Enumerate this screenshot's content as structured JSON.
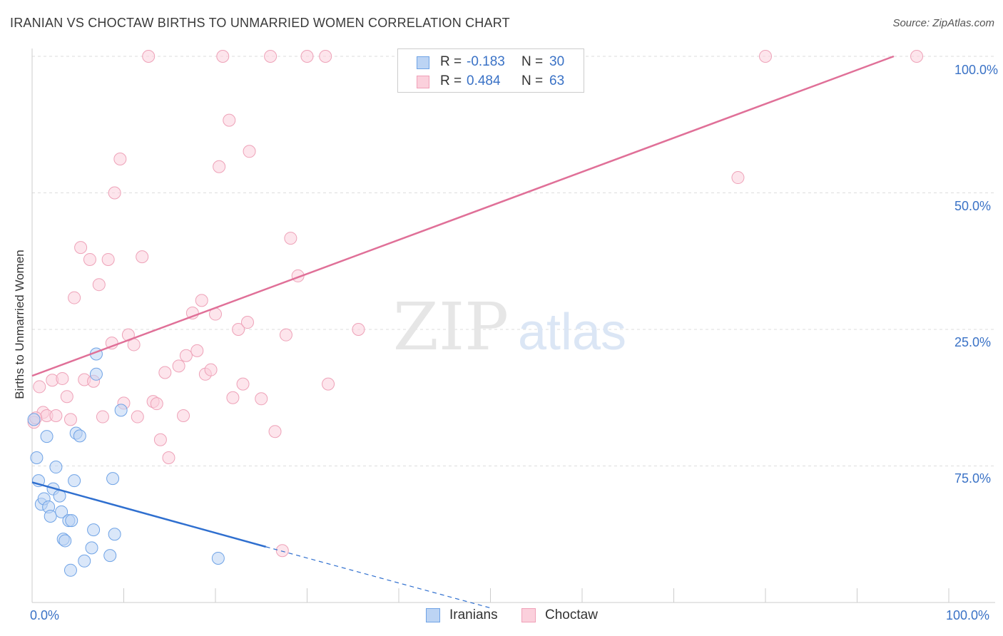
{
  "header": {
    "title": "IRANIAN VS CHOCTAW BIRTHS TO UNMARRIED WOMEN CORRELATION CHART",
    "source": "Source: ZipAtlas.com"
  },
  "watermark": {
    "zip": "ZIP",
    "atlas": "atlas"
  },
  "legend": {
    "iranians": {
      "r_label": "R =",
      "r_value": "-0.183",
      "n_label": "N =",
      "n_value": "30"
    },
    "choctaw": {
      "r_label": "R =",
      "r_value": "0.484",
      "n_label": "N =",
      "n_value": "63"
    }
  },
  "chart_data": {
    "type": "scatter",
    "title": "IRANIAN VS CHOCTAW BIRTHS TO UNMARRIED WOMEN CORRELATION CHART",
    "xlabel": "",
    "ylabel": "Births to Unmarried Women",
    "xlim": [
      0,
      100
    ],
    "ylim": [
      0,
      100
    ],
    "x_tick_labels": [
      "0.0%",
      "100.0%"
    ],
    "y_tick_labels": [
      "25.0%",
      "50.0%",
      "75.0%",
      "100.0%"
    ],
    "grid": true,
    "legend_position": "top-center",
    "colors": {
      "iranians": "#6fa3e6",
      "choctaw": "#f0a0b8",
      "iranians_line": "#2f6fcf",
      "choctaw_line": "#e07098"
    },
    "series": [
      {
        "name": "Iranians",
        "r": -0.183,
        "n": 30,
        "trend": {
          "x0": 0,
          "y0": 22.0,
          "x1": 25.5,
          "y1": 10.2,
          "dashed_to_x": 50,
          "dashed_to_y": -1.0
        },
        "points": [
          [
            0.2,
            33.5
          ],
          [
            0.5,
            26.5
          ],
          [
            0.7,
            22.3
          ],
          [
            1.0,
            18.0
          ],
          [
            1.3,
            19.0
          ],
          [
            1.6,
            30.4
          ],
          [
            1.8,
            17.5
          ],
          [
            2.0,
            15.8
          ],
          [
            2.3,
            20.8
          ],
          [
            2.6,
            24.8
          ],
          [
            3.0,
            19.5
          ],
          [
            3.2,
            16.6
          ],
          [
            3.4,
            11.6
          ],
          [
            3.6,
            11.3
          ],
          [
            4.0,
            15.0
          ],
          [
            4.3,
            15.0
          ],
          [
            4.2,
            5.9
          ],
          [
            4.6,
            22.3
          ],
          [
            4.8,
            31.0
          ],
          [
            5.2,
            30.5
          ],
          [
            5.7,
            7.6
          ],
          [
            6.5,
            10.0
          ],
          [
            6.7,
            13.3
          ],
          [
            7.0,
            45.5
          ],
          [
            7.0,
            41.8
          ],
          [
            8.5,
            8.6
          ],
          [
            8.8,
            22.7
          ],
          [
            9.0,
            12.5
          ],
          [
            9.7,
            35.2
          ],
          [
            20.3,
            8.1
          ]
        ]
      },
      {
        "name": "Choctaw",
        "r": 0.484,
        "n": 63,
        "trend": {
          "x0": 0,
          "y0": 41.5,
          "x1": 94,
          "y1": 100
        },
        "points": [
          [
            0.2,
            33.0
          ],
          [
            0.8,
            39.5
          ],
          [
            1.2,
            34.8
          ],
          [
            1.6,
            34.2
          ],
          [
            2.2,
            40.7
          ],
          [
            2.6,
            34.2
          ],
          [
            3.3,
            41.0
          ],
          [
            3.8,
            37.7
          ],
          [
            4.2,
            33.5
          ],
          [
            4.6,
            55.8
          ],
          [
            5.3,
            65.0
          ],
          [
            5.7,
            40.8
          ],
          [
            6.3,
            62.8
          ],
          [
            6.7,
            40.5
          ],
          [
            7.3,
            58.2
          ],
          [
            7.7,
            34.0
          ],
          [
            8.3,
            62.8
          ],
          [
            8.7,
            47.5
          ],
          [
            9.0,
            75.0
          ],
          [
            9.6,
            81.2
          ],
          [
            10.0,
            36.5
          ],
          [
            10.5,
            49.0
          ],
          [
            11.1,
            47.2
          ],
          [
            11.5,
            34.0
          ],
          [
            12.0,
            63.3
          ],
          [
            12.7,
            100.0
          ],
          [
            13.2,
            36.8
          ],
          [
            13.6,
            36.4
          ],
          [
            14.0,
            29.8
          ],
          [
            14.5,
            42.1
          ],
          [
            14.9,
            26.5
          ],
          [
            16.0,
            43.3
          ],
          [
            16.5,
            34.2
          ],
          [
            16.8,
            45.2
          ],
          [
            17.5,
            53.0
          ],
          [
            18.0,
            46.1
          ],
          [
            18.5,
            55.3
          ],
          [
            18.9,
            41.8
          ],
          [
            19.5,
            42.6
          ],
          [
            20.0,
            52.8
          ],
          [
            20.4,
            79.8
          ],
          [
            20.8,
            100.0
          ],
          [
            21.5,
            88.3
          ],
          [
            21.9,
            37.5
          ],
          [
            22.5,
            50.0
          ],
          [
            23.0,
            40.0
          ],
          [
            23.5,
            51.3
          ],
          [
            23.7,
            82.6
          ],
          [
            25.0,
            37.3
          ],
          [
            26.0,
            100.0
          ],
          [
            26.5,
            31.3
          ],
          [
            27.3,
            9.5
          ],
          [
            27.7,
            49.0
          ],
          [
            28.2,
            66.7
          ],
          [
            29.0,
            59.8
          ],
          [
            30.0,
            100.0
          ],
          [
            32.0,
            100.0
          ],
          [
            32.3,
            40.0
          ],
          [
            35.6,
            50.0
          ],
          [
            77.0,
            77.8
          ],
          [
            80.0,
            100.0
          ],
          [
            96.5,
            100.0
          ],
          [
            0.4,
            33.8
          ]
        ]
      }
    ]
  },
  "bottom_legend": {
    "iranians": "Iranians",
    "choctaw": "Choctaw"
  }
}
